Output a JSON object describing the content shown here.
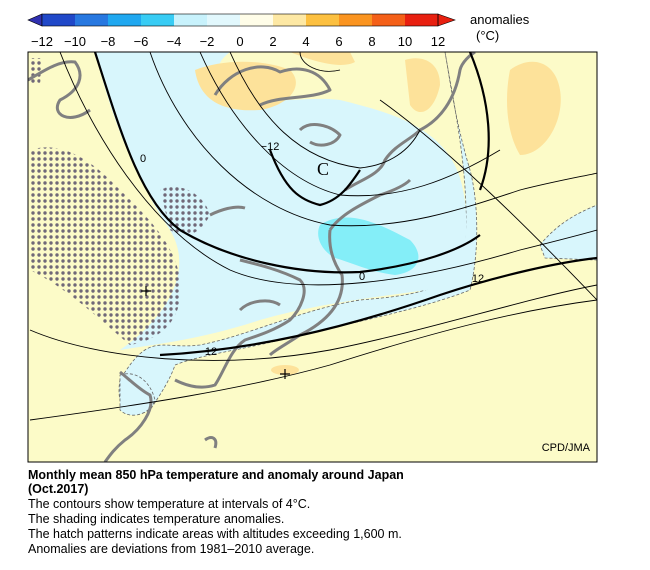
{
  "colorbar": {
    "ticks": [
      "−12",
      "−10",
      "−8",
      "−6",
      "−4",
      "−2",
      "0",
      "2",
      "4",
      "6",
      "8",
      "10",
      "12"
    ],
    "title": "anomalies",
    "unit": "(°C)"
  },
  "map": {
    "labels": [
      "0",
      "−12",
      "C",
      "0",
      "12",
      "12"
    ],
    "credit": "CPD/JMA"
  },
  "caption": {
    "title_lines": [
      "Monthly mean 850 hPa temperature and anomaly around Japan",
      "(Oct.2017)"
    ],
    "lines": [
      "The contours show temperature at intervals of 4°C.",
      "The shading indicates temperature anomalies.",
      "The hatch patterns indicate areas with altitudes exceeding 1,600 m.",
      "Anomalies are deviations from 1981–2010 average."
    ]
  }
}
